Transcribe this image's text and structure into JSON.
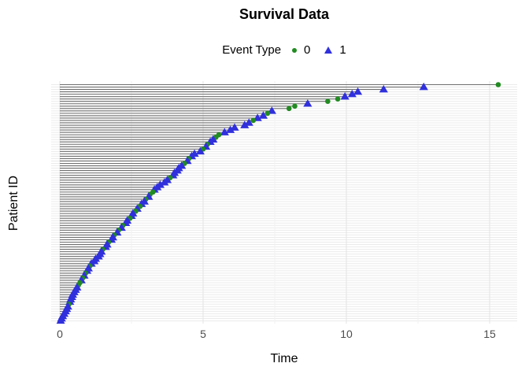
{
  "chart_data": {
    "type": "scatter",
    "title": "Survival Data",
    "xlabel": "Time",
    "ylabel": "Patient ID",
    "xlim": [
      -0.3,
      16
    ],
    "xticks": [
      0,
      5,
      10,
      15
    ],
    "xtick_labels": [
      "0",
      "5",
      "10",
      "15"
    ],
    "minor_xticks": [
      2.5,
      7.5,
      12.5
    ],
    "grid": "on",
    "legend": {
      "title": "Event Type",
      "position": "top",
      "entries": [
        {
          "label": "0",
          "marker": "circle-icon",
          "color": "#228B22"
        },
        {
          "label": "1",
          "marker": "triangle-icon",
          "color": "#3030DC"
        }
      ]
    },
    "colors": {
      "segment": "#6e6e6e",
      "row_gridline": "#ebebeb",
      "major_gridline": "#e3e3e3",
      "minor_gridline": "#f2f2f2",
      "event0": "#228B22",
      "event1": "#3030DC"
    },
    "patients_note": "rows ordered top to bottom of plot; t = survival time, e = event type (0 censored circle, 1 event triangle)",
    "patients": [
      {
        "t": 15.3,
        "e": 0
      },
      {
        "t": 12.7,
        "e": 1
      },
      {
        "t": 11.3,
        "e": 1
      },
      {
        "t": 10.4,
        "e": 1
      },
      {
        "t": 10.2,
        "e": 1
      },
      {
        "t": 9.95,
        "e": 1
      },
      {
        "t": 9.7,
        "e": 0
      },
      {
        "t": 9.35,
        "e": 0
      },
      {
        "t": 8.65,
        "e": 1
      },
      {
        "t": 8.2,
        "e": 0
      },
      {
        "t": 8.0,
        "e": 0
      },
      {
        "t": 7.4,
        "e": 1
      },
      {
        "t": 7.25,
        "e": 0
      },
      {
        "t": 7.1,
        "e": 1
      },
      {
        "t": 6.9,
        "e": 1
      },
      {
        "t": 6.75,
        "e": 0
      },
      {
        "t": 6.6,
        "e": 1
      },
      {
        "t": 6.45,
        "e": 1
      },
      {
        "t": 6.1,
        "e": 1
      },
      {
        "t": 5.95,
        "e": 1
      },
      {
        "t": 5.75,
        "e": 1
      },
      {
        "t": 5.55,
        "e": 0
      },
      {
        "t": 5.45,
        "e": 0
      },
      {
        "t": 5.35,
        "e": 1
      },
      {
        "t": 5.25,
        "e": 1
      },
      {
        "t": 5.15,
        "e": 0
      },
      {
        "t": 5.1,
        "e": 1
      },
      {
        "t": 5.0,
        "e": 0
      },
      {
        "t": 4.9,
        "e": 1
      },
      {
        "t": 4.7,
        "e": 1
      },
      {
        "t": 4.6,
        "e": 1
      },
      {
        "t": 4.5,
        "e": 0
      },
      {
        "t": 4.45,
        "e": 1
      },
      {
        "t": 4.35,
        "e": 0
      },
      {
        "t": 4.25,
        "e": 1
      },
      {
        "t": 4.15,
        "e": 1
      },
      {
        "t": 4.1,
        "e": 1
      },
      {
        "t": 4.0,
        "e": 1
      },
      {
        "t": 3.95,
        "e": 1
      },
      {
        "t": 3.85,
        "e": 0
      },
      {
        "t": 3.75,
        "e": 1
      },
      {
        "t": 3.65,
        "e": 1
      },
      {
        "t": 3.5,
        "e": 1
      },
      {
        "t": 3.4,
        "e": 1
      },
      {
        "t": 3.3,
        "e": 1
      },
      {
        "t": 3.25,
        "e": 0
      },
      {
        "t": 3.15,
        "e": 0
      },
      {
        "t": 3.1,
        "e": 1
      },
      {
        "t": 3.0,
        "e": 0
      },
      {
        "t": 2.95,
        "e": 1
      },
      {
        "t": 2.85,
        "e": 1
      },
      {
        "t": 2.8,
        "e": 0
      },
      {
        "t": 2.7,
        "e": 1
      },
      {
        "t": 2.65,
        "e": 0
      },
      {
        "t": 2.55,
        "e": 1
      },
      {
        "t": 2.5,
        "e": 1
      },
      {
        "t": 2.45,
        "e": 0
      },
      {
        "t": 2.35,
        "e": 1
      },
      {
        "t": 2.3,
        "e": 1
      },
      {
        "t": 2.2,
        "e": 0
      },
      {
        "t": 2.15,
        "e": 1
      },
      {
        "t": 2.05,
        "e": 0
      },
      {
        "t": 2.0,
        "e": 1
      },
      {
        "t": 1.9,
        "e": 0
      },
      {
        "t": 1.85,
        "e": 1
      },
      {
        "t": 1.8,
        "e": 1
      },
      {
        "t": 1.7,
        "e": 0
      },
      {
        "t": 1.65,
        "e": 1
      },
      {
        "t": 1.6,
        "e": 1
      },
      {
        "t": 1.5,
        "e": 0
      },
      {
        "t": 1.45,
        "e": 1
      },
      {
        "t": 1.4,
        "e": 1
      },
      {
        "t": 1.35,
        "e": 1
      },
      {
        "t": 1.25,
        "e": 1
      },
      {
        "t": 1.2,
        "e": 1
      },
      {
        "t": 1.1,
        "e": 1
      },
      {
        "t": 1.05,
        "e": 0
      },
      {
        "t": 1.0,
        "e": 1
      },
      {
        "t": 0.95,
        "e": 1
      },
      {
        "t": 0.9,
        "e": 0
      },
      {
        "t": 0.85,
        "e": 1
      },
      {
        "t": 0.8,
        "e": 0
      },
      {
        "t": 0.75,
        "e": 1
      },
      {
        "t": 0.7,
        "e": 0
      },
      {
        "t": 0.65,
        "e": 0
      },
      {
        "t": 0.6,
        "e": 1
      },
      {
        "t": 0.55,
        "e": 1
      },
      {
        "t": 0.5,
        "e": 1
      },
      {
        "t": 0.45,
        "e": 1
      },
      {
        "t": 0.42,
        "e": 1
      },
      {
        "t": 0.38,
        "e": 1
      },
      {
        "t": 0.35,
        "e": 1
      },
      {
        "t": 0.32,
        "e": 0
      },
      {
        "t": 0.28,
        "e": 1
      },
      {
        "t": 0.24,
        "e": 1
      },
      {
        "t": 0.2,
        "e": 1
      },
      {
        "t": 0.15,
        "e": 1
      },
      {
        "t": 0.1,
        "e": 1
      },
      {
        "t": 0.06,
        "e": 1
      },
      {
        "t": 0.03,
        "e": 1
      }
    ]
  }
}
